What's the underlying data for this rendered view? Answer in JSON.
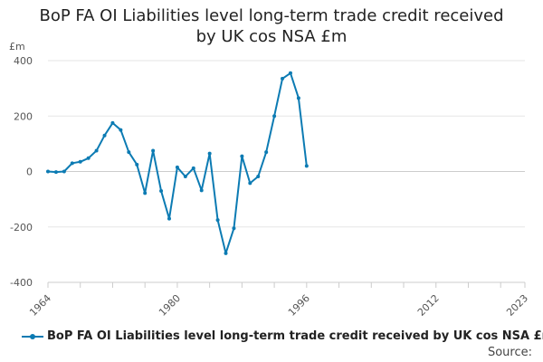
{
  "chart_data": {
    "type": "line",
    "title_lines": [
      "BoP FA OI Liabilities level long-term trade credit received",
      "by UK cos NSA £m"
    ],
    "unit_label": "£m",
    "xlim": [
      1964,
      2023
    ],
    "ylim": [
      -400,
      400
    ],
    "x_ticks": [
      1964,
      1980,
      1996,
      2012,
      2023
    ],
    "x_tick_labels": [
      "1964",
      "1980",
      "1996",
      "2012",
      "2023"
    ],
    "y_ticks": [
      -400,
      -200,
      0,
      200,
      400
    ],
    "y_tick_labels": [
      "-400",
      "-200",
      "0",
      "200",
      "400"
    ],
    "grid": true,
    "legend_position": "bottom",
    "series": [
      {
        "name": "BoP FA OI Liabilities level long-term trade credit received by UK cos NSA £m",
        "color": "#0c7bb3",
        "x": [
          1964,
          1965,
          1966,
          1967,
          1968,
          1969,
          1970,
          1971,
          1972,
          1973,
          1974,
          1975,
          1976,
          1977,
          1978,
          1979,
          1980,
          1981,
          1982,
          1983,
          1984,
          1985,
          1986,
          1987,
          1988,
          1989,
          1990,
          1991,
          1992,
          1993,
          1994,
          1995,
          1996
        ],
        "values": [
          0,
          -2,
          0,
          30,
          35,
          48,
          75,
          130,
          175,
          150,
          70,
          25,
          -78,
          75,
          -70,
          -170,
          15,
          -18,
          12,
          -68,
          65,
          -175,
          -295,
          -205,
          55,
          -42,
          -18,
          70,
          200,
          335,
          355,
          265,
          20
        ]
      }
    ]
  },
  "source_label": "Source:"
}
